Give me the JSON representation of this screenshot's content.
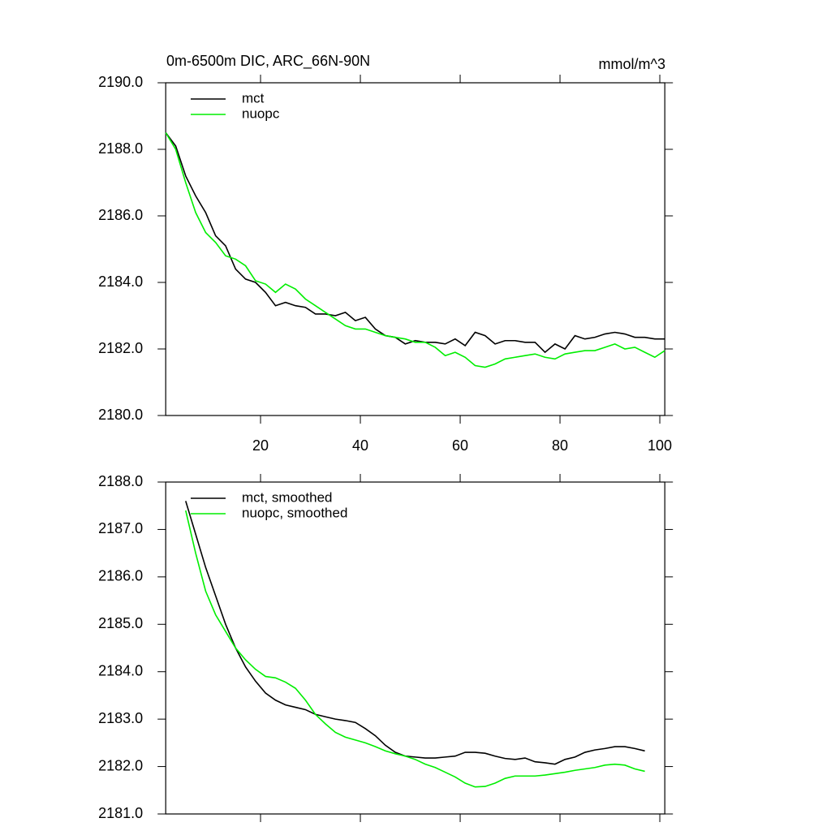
{
  "chart_data": [
    {
      "type": "line",
      "title": "0m-6500m DIC, ARC_66N-90N",
      "units": "mmol/m^3",
      "legend": "upper-left",
      "show_xtick_labels": true,
      "x": [
        1,
        3,
        5,
        7,
        9,
        11,
        13,
        15,
        17,
        19,
        21,
        23,
        25,
        27,
        29,
        31,
        33,
        35,
        37,
        39,
        41,
        43,
        45,
        47,
        49,
        51,
        53,
        55,
        57,
        59,
        61,
        63,
        65,
        67,
        69,
        71,
        73,
        75,
        77,
        79,
        81,
        83,
        85,
        87,
        89,
        91,
        93,
        95,
        97,
        99,
        101
      ],
      "series": [
        {
          "name": "mct",
          "color": "#000000",
          "values": [
            2188.5,
            2188.1,
            2187.2,
            2186.6,
            2186.1,
            2185.4,
            2185.1,
            2184.4,
            2184.1,
            2184.0,
            2183.7,
            2183.3,
            2183.4,
            2183.3,
            2183.25,
            2183.05,
            2183.05,
            2183.0,
            2183.1,
            2182.85,
            2182.95,
            2182.6,
            2182.4,
            2182.35,
            2182.15,
            2182.25,
            2182.2,
            2182.2,
            2182.15,
            2182.3,
            2182.1,
            2182.5,
            2182.4,
            2182.15,
            2182.25,
            2182.25,
            2182.2,
            2182.2,
            2181.9,
            2182.15,
            2182.0,
            2182.4,
            2182.3,
            2182.35,
            2182.45,
            2182.5,
            2182.45,
            2182.35,
            2182.35,
            2182.3,
            2182.3
          ]
        },
        {
          "name": "nuopc",
          "color": "#00ee00",
          "values": [
            2188.5,
            2188.0,
            2187.0,
            2186.1,
            2185.5,
            2185.2,
            2184.8,
            2184.7,
            2184.5,
            2184.05,
            2183.95,
            2183.7,
            2183.95,
            2183.8,
            2183.5,
            2183.3,
            2183.1,
            2182.9,
            2182.7,
            2182.6,
            2182.6,
            2182.5,
            2182.4,
            2182.35,
            2182.3,
            2182.2,
            2182.2,
            2182.05,
            2181.8,
            2181.9,
            2181.75,
            2181.5,
            2181.45,
            2181.55,
            2181.7,
            2181.75,
            2181.8,
            2181.85,
            2181.75,
            2181.7,
            2181.85,
            2181.9,
            2181.95,
            2181.95,
            2182.05,
            2182.15,
            2182.0,
            2182.05,
            2181.9,
            2181.75,
            2181.95
          ]
        }
      ],
      "xlim": [
        1,
        101
      ],
      "xticks": [
        20,
        40,
        60,
        80,
        100
      ],
      "ylim": [
        2180,
        2190
      ],
      "yticks": [
        {
          "value": 2180,
          "label": "2180.0"
        },
        {
          "value": 2182,
          "label": "2182.0"
        },
        {
          "value": 2184,
          "label": "2184.0"
        },
        {
          "value": 2186,
          "label": "2186.0"
        },
        {
          "value": 2188,
          "label": "2188.0"
        },
        {
          "value": 2190,
          "label": "2190.0"
        }
      ]
    },
    {
      "type": "line",
      "legend": "upper-left",
      "show_xtick_labels": false,
      "x": [
        5,
        7,
        9,
        11,
        13,
        15,
        17,
        19,
        21,
        23,
        25,
        27,
        29,
        31,
        33,
        35,
        37,
        39,
        41,
        43,
        45,
        47,
        49,
        51,
        53,
        55,
        57,
        59,
        61,
        63,
        65,
        67,
        69,
        71,
        73,
        75,
        77,
        79,
        81,
        83,
        85,
        87,
        89,
        91,
        93,
        95,
        97
      ],
      "series": [
        {
          "name": "mct, smoothed",
          "color": "#000000",
          "values": [
            2187.6,
            2186.9,
            2186.2,
            2185.6,
            2185.0,
            2184.5,
            2184.1,
            2183.8,
            2183.55,
            2183.4,
            2183.3,
            2183.25,
            2183.2,
            2183.1,
            2183.05,
            2183.0,
            2182.97,
            2182.93,
            2182.8,
            2182.65,
            2182.45,
            2182.3,
            2182.22,
            2182.2,
            2182.18,
            2182.18,
            2182.2,
            2182.22,
            2182.3,
            2182.3,
            2182.28,
            2182.22,
            2182.17,
            2182.15,
            2182.18,
            2182.1,
            2182.08,
            2182.05,
            2182.15,
            2182.2,
            2182.3,
            2182.35,
            2182.38,
            2182.42,
            2182.42,
            2182.38,
            2182.33
          ]
        },
        {
          "name": "nuopc, smoothed",
          "color": "#00ee00",
          "values": [
            2187.4,
            2186.5,
            2185.7,
            2185.2,
            2184.85,
            2184.5,
            2184.25,
            2184.05,
            2183.9,
            2183.87,
            2183.78,
            2183.65,
            2183.4,
            2183.1,
            2182.9,
            2182.72,
            2182.62,
            2182.56,
            2182.5,
            2182.42,
            2182.33,
            2182.27,
            2182.22,
            2182.15,
            2182.05,
            2181.98,
            2181.88,
            2181.78,
            2181.65,
            2181.57,
            2181.58,
            2181.65,
            2181.75,
            2181.8,
            2181.8,
            2181.8,
            2181.82,
            2181.85,
            2181.88,
            2181.92,
            2181.95,
            2181.98,
            2182.03,
            2182.05,
            2182.03,
            2181.95,
            2181.9
          ]
        }
      ],
      "xlim": [
        1,
        101
      ],
      "xticks": [
        20,
        40,
        60,
        80,
        100
      ],
      "ylim": [
        2181,
        2188
      ],
      "yticks": [
        {
          "value": 2181,
          "label": "2181.0"
        },
        {
          "value": 2182,
          "label": "2182.0"
        },
        {
          "value": 2183,
          "label": "2183.0"
        },
        {
          "value": 2184,
          "label": "2184.0"
        },
        {
          "value": 2185,
          "label": "2185.0"
        },
        {
          "value": 2186,
          "label": "2186.0"
        },
        {
          "value": 2187,
          "label": "2187.0"
        },
        {
          "value": 2188,
          "label": "2188.0"
        }
      ]
    }
  ]
}
